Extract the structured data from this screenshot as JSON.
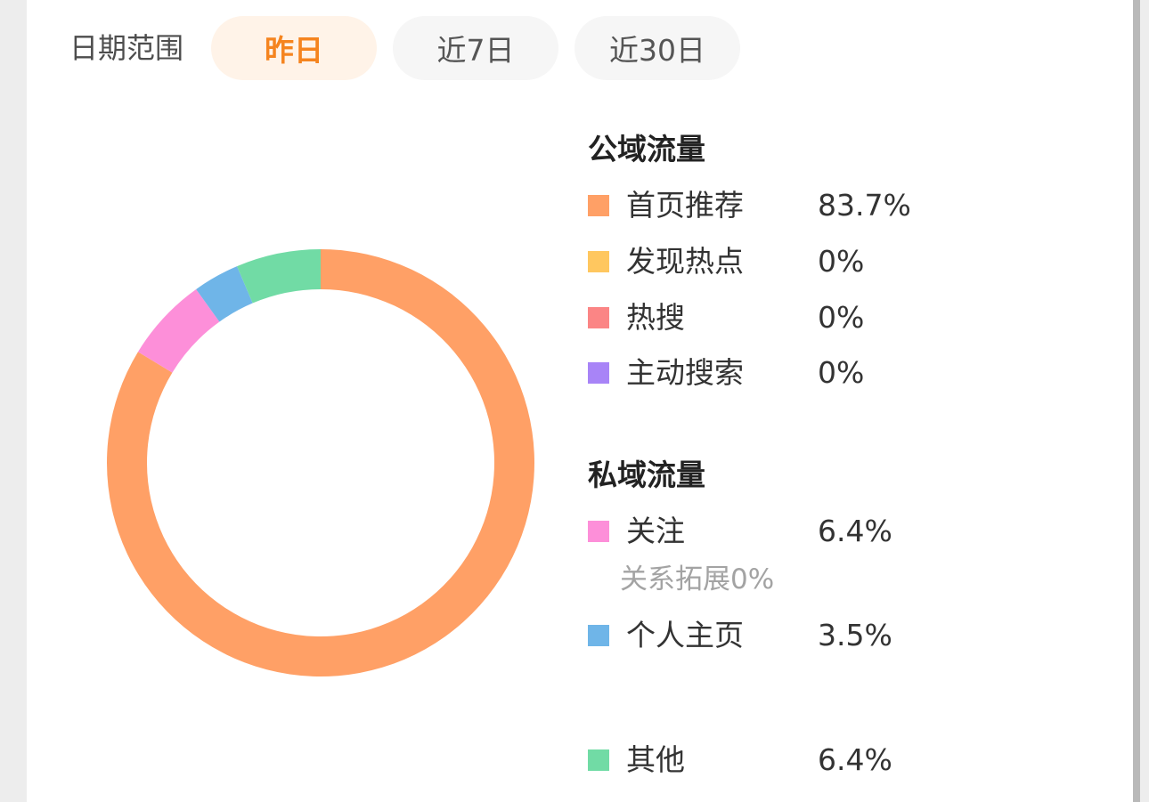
{
  "date_filter": {
    "label": "日期范围",
    "options": [
      "昨日",
      "近7日",
      "近30日"
    ],
    "selected": "昨日"
  },
  "groups": [
    {
      "title": "公域流量",
      "items": [
        {
          "label": "首页推荐",
          "value": "83.7%",
          "color": "#ffa066"
        },
        {
          "label": "发现热点",
          "value": "0%",
          "color": "#ffc75f"
        },
        {
          "label": "热搜",
          "value": "0%",
          "color": "#fb8585"
        },
        {
          "label": "主动搜索",
          "value": "0%",
          "color": "#a884f7"
        }
      ]
    },
    {
      "title": "私域流量",
      "items": [
        {
          "label": "关注",
          "value": "6.4%",
          "color": "#fd8fd9",
          "note": "关系拓展0%"
        },
        {
          "label": "个人主页",
          "value": "3.5%",
          "color": "#6fb5e8"
        }
      ]
    },
    {
      "title": "",
      "items": [
        {
          "label": "其他",
          "value": "6.4%",
          "color": "#71dba5"
        }
      ]
    }
  ],
  "chart_data": {
    "type": "pie",
    "style": "donut",
    "categories": [
      "首页推荐",
      "发现热点",
      "热搜",
      "主动搜索",
      "关注",
      "个人主页",
      "其他"
    ],
    "values": [
      83.7,
      0,
      0,
      0,
      6.4,
      3.5,
      6.4
    ],
    "colors": [
      "#ffa066",
      "#ffc75f",
      "#fb8585",
      "#a884f7",
      "#fd8fd9",
      "#6fb5e8",
      "#71dba5"
    ],
    "start_angle": "top",
    "direction": "clockwise"
  }
}
